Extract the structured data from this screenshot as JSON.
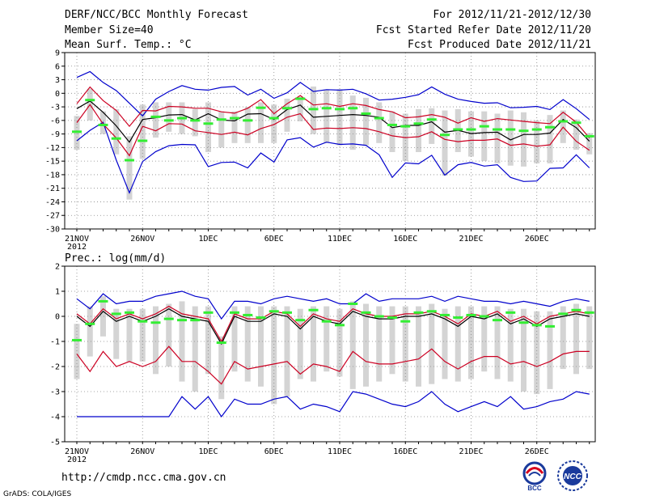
{
  "header": {
    "title": "DERF/NCC/BCC Monthly Forecast",
    "member_size": "Member Size=40",
    "variable": "Mean Surf. Temp.: °C",
    "period": "For 2012/11/21-2012/12/30",
    "started": "Fcst Started Refer Date 2012/11/20",
    "produced": "Fcst Produced Date 2012/11/21"
  },
  "footer": {
    "url": "http://cmdp.ncc.cma.gov.cn",
    "grads": "GrADS: COLA/IGES",
    "logo1": "BCC",
    "logo2": "NCC"
  },
  "colors": {
    "spread": "#d4d4d4",
    "bound": "#0000cc",
    "quantile": "#cc0022",
    "mean": "#000000",
    "median": "#33ee33",
    "grid": "#888888"
  },
  "chart_data": [
    {
      "type": "line",
      "title": "Mean Surf. Temp.: °C",
      "ylim": [
        -30,
        9
      ],
      "yticks": [
        9,
        6,
        3,
        0,
        -3,
        -6,
        -9,
        -12,
        -15,
        -18,
        -21,
        -24,
        -27,
        -30
      ],
      "xticks": [
        {
          "day": 0,
          "label": "21NOV"
        },
        {
          "day": 5,
          "label": "26NOV"
        },
        {
          "day": 10,
          "label": "1DEC"
        },
        {
          "day": 15,
          "label": "6DEC"
        },
        {
          "day": 20,
          "label": "11DEC"
        },
        {
          "day": 25,
          "label": "16DEC"
        },
        {
          "day": 30,
          "label": "21DEC"
        },
        {
          "day": 35,
          "label": "26DEC"
        }
      ],
      "year_label": "2012",
      "series": [
        {
          "name": "max",
          "values": [
            3.5,
            4.8,
            2.4,
            0.6,
            -2.2,
            -5,
            -1.3,
            0.4,
            1.7,
            0.9,
            0.7,
            1.3,
            1.5,
            -0.4,
            0.9,
            -1.1,
            0.1,
            2.4,
            0.4,
            0.8,
            0.7,
            0.9,
            -0.1,
            -1.5,
            -1.3,
            -0.9,
            -0.3,
            1.4,
            -0.2,
            -1.3,
            -1.8,
            -2.2,
            -2.1,
            -3.2,
            -3.1,
            -2.9,
            -3.6,
            -1.4,
            -3.4,
            -5.8
          ]
        },
        {
          "name": "upper",
          "values": [
            -2.3,
            1.4,
            -1.6,
            -3.8,
            -7.3,
            -3.8,
            -3.9,
            -2.9,
            -3,
            -3.3,
            -3.3,
            -4.1,
            -4.4,
            -3.3,
            -1.4,
            -4.5,
            -2.3,
            -0.5,
            -2.6,
            -2.3,
            -2.9,
            -2.3,
            -2.7,
            -3.6,
            -4.1,
            -5.4,
            -5.2,
            -4.7,
            -5.3,
            -6.6,
            -5.4,
            -6.2,
            -5.6,
            -5.9,
            -6.2,
            -6.5,
            -6.7,
            -4.2,
            -6.4,
            -9.9
          ]
        },
        {
          "name": "mean",
          "values": [
            -3.4,
            -1.7,
            -4.2,
            -7.2,
            -10.8,
            -5.8,
            -5.4,
            -4.8,
            -4.7,
            -5.9,
            -4.5,
            -5.9,
            -6.1,
            -4.6,
            -4.5,
            -5.8,
            -3.6,
            -2.6,
            -5.3,
            -5.1,
            -4.9,
            -4.7,
            -4.9,
            -5.3,
            -7.6,
            -7.1,
            -7.1,
            -6.3,
            -8.6,
            -8.2,
            -8.9,
            -8.7,
            -8.6,
            -10.3,
            -9.1,
            -9.1,
            -8.8,
            -5.8,
            -7.6,
            -10.6
          ]
        },
        {
          "name": "lower",
          "values": [
            -6.5,
            -2.5,
            -6.8,
            -9.9,
            -13.8,
            -7.3,
            -8.3,
            -6.7,
            -6.8,
            -8.3,
            -8.7,
            -9.1,
            -8.6,
            -9.2,
            -7.8,
            -6.9,
            -5.3,
            -4.5,
            -8,
            -7.7,
            -7.8,
            -7.6,
            -7.8,
            -8.5,
            -9.4,
            -9.8,
            -9.6,
            -8.5,
            -10.2,
            -10.7,
            -10.4,
            -10.4,
            -10.1,
            -11.5,
            -11.2,
            -11.7,
            -11.4,
            -7.5,
            -10.6,
            -12.6
          ]
        },
        {
          "name": "min",
          "values": [
            -10.5,
            -8.2,
            -6.4,
            -14.8,
            -22,
            -15.1,
            -12.9,
            -11.6,
            -11.3,
            -11.4,
            -16.2,
            -15.3,
            -15.2,
            -16.5,
            -13.2,
            -15.2,
            -10.3,
            -9.8,
            -11.9,
            -10.8,
            -11.3,
            -11.2,
            -11.5,
            -13.6,
            -18.6,
            -15.4,
            -15.6,
            -13.7,
            -18.1,
            -15.8,
            -15.3,
            -16.1,
            -15.8,
            -18.6,
            -19.5,
            -19.4,
            -16.6,
            -16.5,
            -13.6,
            -16.5
          ]
        },
        {
          "name": "median",
          "values": [
            -8.5,
            -1.5,
            -7,
            -10,
            -14.8,
            -10.5,
            -5.2,
            -6,
            -5.5,
            -6,
            -6.7,
            -5.8,
            -5.5,
            -6,
            -3.2,
            -5.5,
            -3.3,
            -1.2,
            -3.5,
            -3.3,
            -3.5,
            -3.3,
            -4.5,
            -5.5,
            -7,
            -7.3,
            -6.7,
            -5.8,
            -9.2,
            -8,
            -8,
            -7.3,
            -8,
            -8,
            -8.3,
            -8,
            -7.5,
            -6.2,
            -6.5,
            -9.5
          ]
        },
        {
          "name": "spread_high",
          "values": [
            -5,
            1,
            -4,
            -3.5,
            -9.5,
            -2.5,
            -2,
            -2,
            -2,
            -3.5,
            -2,
            -4,
            -4,
            -3,
            -2,
            -2.5,
            -1.2,
            -0.8,
            1.5,
            0.8,
            0.9,
            -0.5,
            -1,
            -2,
            -4,
            -4.5,
            -3.5,
            -3.3,
            -3.8,
            -3.5,
            -4,
            -4,
            -4.5,
            -3.8,
            -4.2,
            -6,
            -4.8,
            -3.8,
            -5.8,
            -8.8
          ]
        },
        {
          "name": "spread_low",
          "values": [
            -12.5,
            -6,
            -9,
            -13.5,
            -23.5,
            -14.5,
            -9.8,
            -8.5,
            -9,
            -9.5,
            -13,
            -12,
            -11,
            -11,
            -11,
            -11,
            -8.5,
            -6.2,
            -9,
            -11,
            -11.5,
            -12.5,
            -11.5,
            -11,
            -13,
            -15,
            -13,
            -11.2,
            -18.2,
            -13,
            -14,
            -15,
            -15.5,
            -16,
            -16.2,
            -15.5,
            -15.5,
            -11,
            -12.5,
            -13.5
          ]
        }
      ]
    },
    {
      "type": "line",
      "title": "Prec.: log(mm/d)",
      "ylim": [
        -5,
        2
      ],
      "yticks": [
        2,
        1,
        0,
        -1,
        -2,
        -3,
        -4,
        -5
      ],
      "xticks": [
        {
          "day": 0,
          "label": "21NOV"
        },
        {
          "day": 5,
          "label": "26NOV"
        },
        {
          "day": 10,
          "label": "1DEC"
        },
        {
          "day": 15,
          "label": "6DEC"
        },
        {
          "day": 20,
          "label": "11DEC"
        },
        {
          "day": 25,
          "label": "16DEC"
        },
        {
          "day": 30,
          "label": "21DEC"
        },
        {
          "day": 35,
          "label": "26DEC"
        }
      ],
      "year_label": "2012",
      "series": [
        {
          "name": "max",
          "values": [
            0.7,
            0.3,
            0.9,
            0.5,
            0.6,
            0.6,
            0.8,
            0.9,
            1,
            0.8,
            0.7,
            -0.1,
            0.6,
            0.6,
            0.5,
            0.7,
            0.8,
            0.7,
            0.6,
            0.7,
            0.5,
            0.5,
            0.9,
            0.6,
            0.7,
            0.7,
            0.7,
            0.8,
            0.6,
            0.8,
            0.7,
            0.6,
            0.6,
            0.5,
            0.6,
            0.5,
            0.4,
            0.6,
            0.7,
            0.6
          ]
        },
        {
          "name": "mean",
          "values": [
            0,
            -0.4,
            0.2,
            -0.2,
            0,
            -0.2,
            0,
            0.3,
            0,
            -0.1,
            -0.2,
            -1.1,
            0,
            -0.2,
            -0.2,
            0.1,
            0,
            -0.5,
            0,
            -0.2,
            -0.3,
            0.2,
            0,
            -0.1,
            -0.1,
            0,
            0,
            0.1,
            -0.1,
            -0.4,
            0,
            -0.1,
            0.1,
            -0.3,
            -0.1,
            -0.4,
            -0.1,
            0,
            0.1,
            0
          ]
        },
        {
          "name": "upper",
          "values": [
            0.1,
            -0.3,
            0.3,
            -0.1,
            0.1,
            -0.1,
            0.1,
            0.4,
            0.1,
            0,
            -0.1,
            -1,
            0.1,
            -0.1,
            -0.1,
            0.2,
            0.1,
            -0.4,
            0.1,
            -0.1,
            -0.2,
            0.3,
            0.1,
            0,
            0,
            0.1,
            0.1,
            0.2,
            0,
            -0.3,
            0.1,
            0,
            0.2,
            -0.2,
            0,
            -0.3,
            0,
            0.1,
            0.2,
            0.1
          ]
        },
        {
          "name": "lower",
          "values": [
            -1.5,
            -2.2,
            -1.4,
            -2,
            -1.8,
            -2,
            -1.8,
            -1.2,
            -1.8,
            -1.8,
            -2.2,
            -2.7,
            -1.8,
            -2.1,
            -2,
            -1.9,
            -1.8,
            -2.3,
            -1.9,
            -2,
            -2.2,
            -1.4,
            -1.8,
            -1.9,
            -1.9,
            -1.8,
            -1.7,
            -1.3,
            -1.8,
            -2.1,
            -1.8,
            -1.6,
            -1.6,
            -1.9,
            -1.8,
            -2,
            -1.8,
            -1.5,
            -1.4,
            -1.4
          ]
        },
        {
          "name": "min",
          "values": [
            -4,
            -4,
            -4,
            -4,
            -4,
            -4,
            -4,
            -4,
            -3.2,
            -3.7,
            -3.2,
            -4,
            -3.3,
            -3.5,
            -3.5,
            -3.3,
            -3.2,
            -3.7,
            -3.5,
            -3.6,
            -3.8,
            -3,
            -3.1,
            -3.3,
            -3.5,
            -3.6,
            -3.4,
            -3,
            -3.5,
            -3.8,
            -3.6,
            -3.4,
            -3.6,
            -3.2,
            -3.7,
            -3.6,
            -3.4,
            -3.3,
            -3,
            -3.1
          ]
        },
        {
          "name": "median",
          "values": [
            -0.95,
            -0.3,
            0.6,
            0.1,
            0.15,
            -0.2,
            -0.25,
            -0.1,
            -0.15,
            -0.15,
            0.15,
            -1.05,
            0.15,
            0.05,
            -0.05,
            0.2,
            0.15,
            -0.15,
            0.25,
            -0.2,
            -0.35,
            0.5,
            0.15,
            0,
            -0.05,
            -0.2,
            0.15,
            0.2,
            0.05,
            -0.05,
            0.05,
            0,
            -0.15,
            0.15,
            -0.25,
            -0.35,
            -0.4,
            0.1,
            0.25,
            0.15
          ]
        },
        {
          "name": "spread_high",
          "values": [
            -0.3,
            0.4,
            0.8,
            0.3,
            0.3,
            0.3,
            0.4,
            0.5,
            0.6,
            0.4,
            0.4,
            -0.8,
            0.4,
            0.4,
            0.4,
            0.4,
            0.4,
            0.3,
            0.4,
            0.4,
            0.3,
            0.6,
            0.5,
            0.4,
            0.4,
            0.4,
            0.4,
            0.5,
            0.3,
            0.4,
            0.4,
            0.4,
            0.4,
            0.3,
            0.3,
            0.2,
            0.2,
            0.4,
            0.5,
            0.4
          ]
        },
        {
          "name": "spread_low",
          "values": [
            -2.5,
            -1.6,
            -0.8,
            -1.7,
            -1.8,
            -1.8,
            -2.3,
            -2,
            -2.6,
            -3,
            -2.3,
            -3.3,
            -2.2,
            -2.6,
            -2.8,
            -3.5,
            -3.2,
            -2.5,
            -2.6,
            -2.2,
            -2.4,
            -2.9,
            -2.8,
            -2.6,
            -2.3,
            -2.6,
            -2.8,
            -2.7,
            -2.5,
            -2.6,
            -2.5,
            -2.2,
            -2.5,
            -2.6,
            -3,
            -3.1,
            -2.9,
            -2.1,
            -2.3,
            -2.1
          ]
        }
      ]
    }
  ]
}
